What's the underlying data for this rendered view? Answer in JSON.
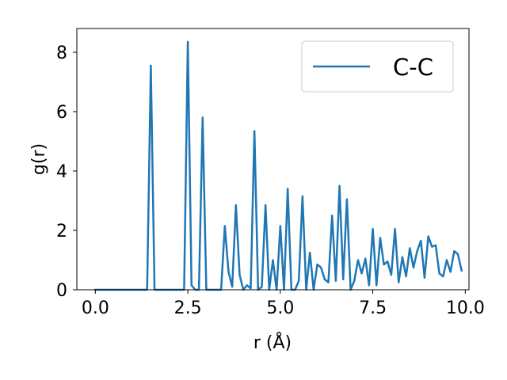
{
  "chart_data": {
    "type": "line",
    "xlabel": "r (Å)",
    "ylabel": "g(r)",
    "xlim": [
      -0.5,
      10.1
    ],
    "ylim": [
      0,
      8.8
    ],
    "xticks": [
      0.0,
      2.5,
      5.0,
      7.5,
      10.0
    ],
    "xtick_labels": [
      "0.0",
      "2.5",
      "5.0",
      "7.5",
      "10.0"
    ],
    "yticks": [
      0,
      2,
      4,
      6,
      8
    ],
    "ytick_labels": [
      "0",
      "2",
      "4",
      "6",
      "8"
    ],
    "grid": false,
    "legend_position": "top-right",
    "series": [
      {
        "name": "C-C",
        "color": "#1f77b4",
        "x": [
          0.0,
          0.1,
          0.2,
          0.3,
          0.4,
          0.5,
          0.6,
          0.7,
          0.8,
          0.9,
          1.0,
          1.1,
          1.2,
          1.3,
          1.4,
          1.5,
          1.6,
          1.7,
          1.8,
          1.9,
          2.0,
          2.1,
          2.2,
          2.3,
          2.4,
          2.5,
          2.6,
          2.7,
          2.8,
          2.9,
          3.0,
          3.1,
          3.2,
          3.3,
          3.4,
          3.5,
          3.6,
          3.7,
          3.8,
          3.9,
          4.0,
          4.1,
          4.2,
          4.3,
          4.4,
          4.5,
          4.6,
          4.7,
          4.8,
          4.9,
          5.0,
          5.1,
          5.2,
          5.3,
          5.4,
          5.5,
          5.6,
          5.7,
          5.8,
          5.9,
          6.0,
          6.1,
          6.2,
          6.3,
          6.4,
          6.5,
          6.6,
          6.7,
          6.8,
          6.9,
          7.0,
          7.1,
          7.2,
          7.3,
          7.4,
          7.5,
          7.6,
          7.7,
          7.8,
          7.9,
          8.0,
          8.1,
          8.2,
          8.3,
          8.4,
          8.5,
          8.6,
          8.7,
          8.8,
          8.9,
          9.0,
          9.1,
          9.2,
          9.3,
          9.4,
          9.5,
          9.6,
          9.7,
          9.8,
          9.9
        ],
        "y": [
          0,
          0,
          0,
          0,
          0,
          0,
          0,
          0,
          0,
          0,
          0,
          0,
          0,
          0,
          0,
          7.55,
          0,
          0,
          0,
          0,
          0,
          0,
          0,
          0,
          0,
          8.35,
          0.15,
          0,
          0,
          5.8,
          0,
          0,
          0,
          0,
          0,
          2.15,
          0.6,
          0.1,
          2.85,
          0.5,
          0,
          0.15,
          0.05,
          5.35,
          0,
          0.1,
          2.85,
          0,
          1.0,
          0,
          2.15,
          0,
          3.4,
          0,
          0,
          0.3,
          3.15,
          0,
          1.25,
          0,
          0.85,
          0.75,
          0.35,
          0.25,
          2.5,
          0.3,
          3.5,
          0.35,
          3.05,
          0,
          0.3,
          1.0,
          0.55,
          1.05,
          0.15,
          2.05,
          0.15,
          1.75,
          0.85,
          0.95,
          0.5,
          2.05,
          0.25,
          1.1,
          0.45,
          1.4,
          0.75,
          1.3,
          1.65,
          0.4,
          1.8,
          1.45,
          1.5,
          0.55,
          0.45,
          1.0,
          0.6,
          1.3,
          1.2,
          0.65
        ]
      }
    ]
  },
  "legend": {
    "label": "C-C"
  }
}
